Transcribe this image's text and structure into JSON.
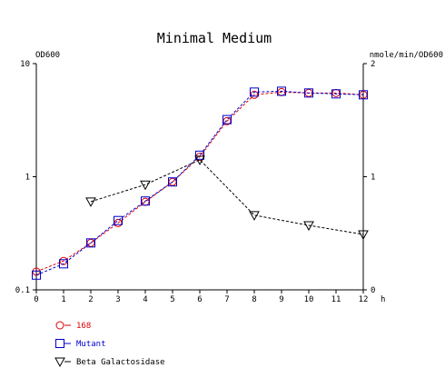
{
  "chart_data": {
    "type": "line",
    "title": "Minimal Medium",
    "left_axis": {
      "label": "OD600",
      "scale": "log",
      "range": [
        0.1,
        10
      ],
      "ticks": [
        "0.1",
        "1",
        "10"
      ]
    },
    "right_axis": {
      "label": "nmole/min/OD600",
      "scale": "linear",
      "range": [
        0,
        2
      ],
      "ticks": [
        "0",
        "1",
        "2"
      ]
    },
    "x_axis": {
      "unit_label": "h",
      "range": [
        0,
        12
      ],
      "ticks": [
        "0",
        "1",
        "2",
        "3",
        "4",
        "5",
        "6",
        "7",
        "8",
        "9",
        "10",
        "11",
        "12"
      ]
    },
    "legend_position": "bottom-left",
    "series": [
      {
        "name": "168",
        "axis": "left",
        "marker": "circle",
        "color": "#dd0000",
        "legend_color": "#dd0000",
        "x": [
          0,
          1,
          2,
          3,
          4,
          5,
          6,
          7,
          8,
          9,
          10,
          11,
          12
        ],
        "y": [
          0.145,
          0.18,
          0.26,
          0.39,
          0.6,
          0.9,
          1.5,
          3.1,
          5.3,
          5.6,
          5.5,
          5.5,
          5.3
        ]
      },
      {
        "name": "Mutant",
        "axis": "left",
        "marker": "square",
        "color": "#0000cc",
        "legend_color": "#0000cc",
        "x": [
          0,
          1,
          2,
          3,
          4,
          5,
          6,
          7,
          8,
          9,
          10,
          11,
          12
        ],
        "y": [
          0.135,
          0.17,
          0.26,
          0.41,
          0.61,
          0.9,
          1.55,
          3.2,
          5.6,
          5.7,
          5.5,
          5.4,
          5.3
        ]
      },
      {
        "name": "Beta Galactosidase",
        "axis": "right",
        "marker": "triangle-down",
        "color": "#000000",
        "legend_color": "#000000",
        "x": [
          2,
          4,
          6,
          8,
          10,
          12
        ],
        "y": [
          0.78,
          0.93,
          1.15,
          0.66,
          0.57,
          0.49
        ]
      }
    ]
  }
}
